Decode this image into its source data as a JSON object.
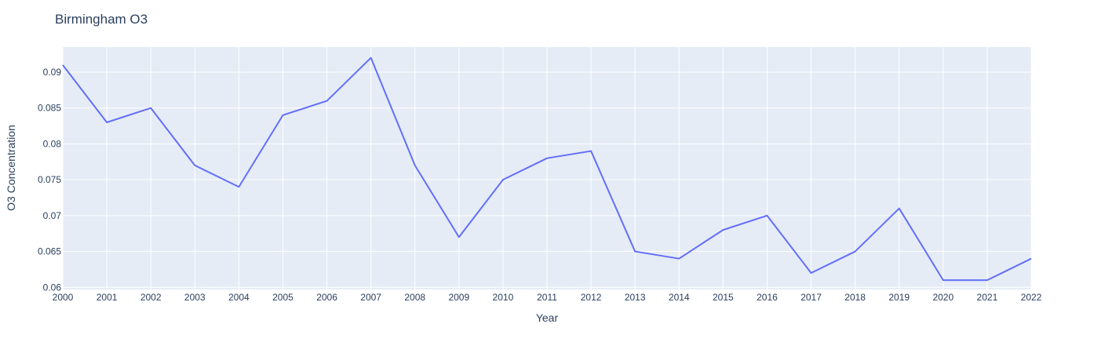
{
  "chart_data": {
    "type": "line",
    "title": "Birmingham O3",
    "xlabel": "Year",
    "ylabel": "O3 Concentration",
    "x": [
      2000,
      2001,
      2002,
      2003,
      2004,
      2005,
      2006,
      2007,
      2008,
      2009,
      2010,
      2011,
      2012,
      2013,
      2014,
      2015,
      2016,
      2017,
      2018,
      2019,
      2020,
      2021,
      2022
    ],
    "series": [
      {
        "values": [
          0.091,
          0.083,
          0.085,
          0.077,
          0.074,
          0.084,
          0.086,
          0.092,
          0.077,
          0.067,
          0.075,
          0.078,
          0.079,
          0.065,
          0.064,
          0.068,
          0.07,
          0.062,
          0.065,
          0.071,
          0.061,
          0.061,
          0.064
        ]
      }
    ],
    "xlim": [
      2000,
      2022
    ],
    "ylim": [
      0.0597,
      0.0935
    ],
    "yticks": [
      "0.06",
      "0.065",
      "0.07",
      "0.075",
      "0.08",
      "0.085",
      "0.09"
    ],
    "xticks": [
      "2000",
      "2001",
      "2002",
      "2003",
      "2004",
      "2005",
      "2006",
      "2007",
      "2008",
      "2009",
      "2010",
      "2011",
      "2012",
      "2013",
      "2014",
      "2015",
      "2016",
      "2017",
      "2018",
      "2019",
      "2020",
      "2021",
      "2022"
    ],
    "grid": true,
    "colors": {
      "plot_bg": "#e5ecf6",
      "line": "#636efa",
      "text": "#2a3f5f",
      "grid": "#ffffff"
    }
  }
}
